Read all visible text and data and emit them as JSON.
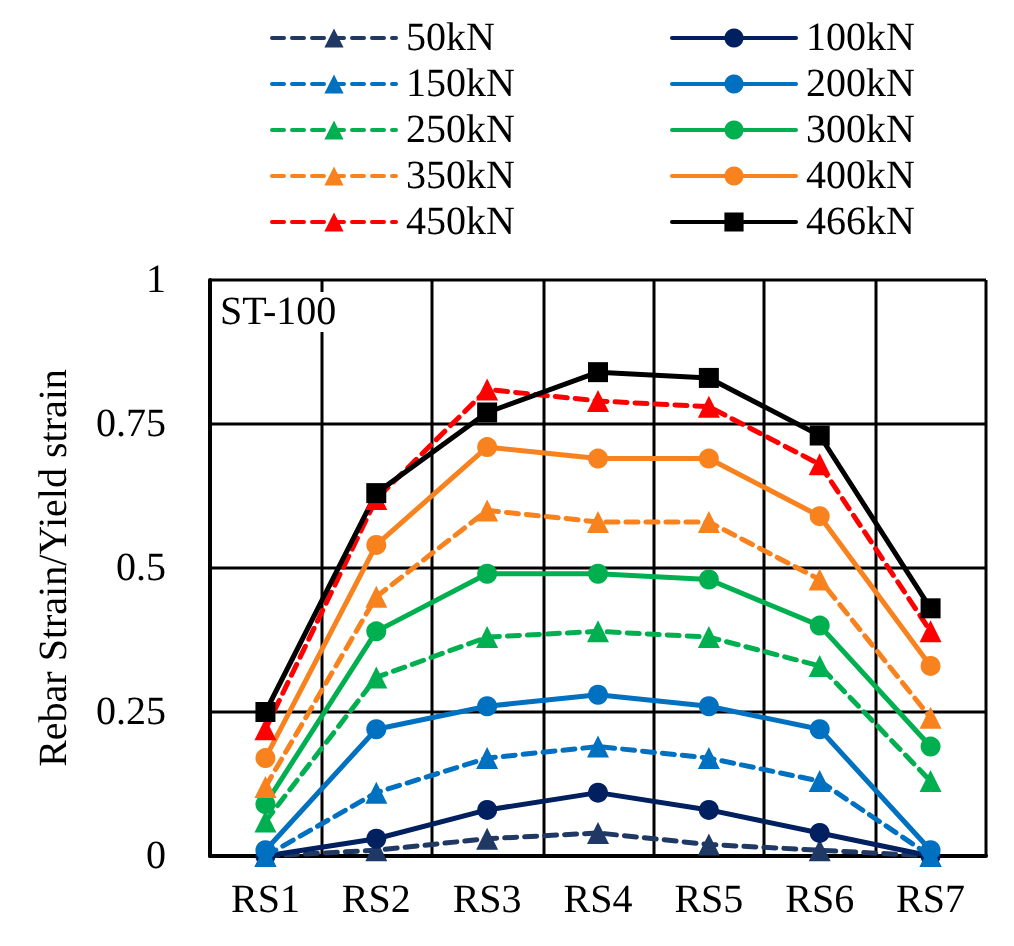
{
  "chart_data": {
    "type": "line",
    "ylabel": "Rebar Strain/Yield strain",
    "annotations": [
      "ST-100"
    ],
    "categories": [
      "RS1",
      "RS2",
      "RS3",
      "RS4",
      "RS5",
      "RS6",
      "RS7"
    ],
    "ylim": [
      0,
      1
    ],
    "yticks": [
      0,
      0.25,
      0.5,
      0.75,
      1
    ],
    "grid": true,
    "legend": "top",
    "series": [
      {
        "name": "50kN",
        "color": "#1f3864",
        "line_style": "dashed",
        "marker": "triangle",
        "values": [
          0,
          0.01,
          0.03,
          0.04,
          0.02,
          0.01,
          0
        ]
      },
      {
        "name": "100kN",
        "color": "#002060",
        "line_style": "solid",
        "marker": "circle",
        "values": [
          0,
          0.03,
          0.08,
          0.11,
          0.08,
          0.04,
          0
        ]
      },
      {
        "name": "150kN",
        "color": "#0070c0",
        "line_style": "dashed",
        "marker": "triangle",
        "values": [
          0,
          0.11,
          0.17,
          0.19,
          0.17,
          0.13,
          0
        ]
      },
      {
        "name": "200kN",
        "color": "#0070c0",
        "line_style": "solid",
        "marker": "circle",
        "values": [
          0.01,
          0.22,
          0.26,
          0.28,
          0.26,
          0.22,
          0.01
        ]
      },
      {
        "name": "250kN",
        "color": "#00b050",
        "line_style": "dashed",
        "marker": "triangle",
        "values": [
          0.06,
          0.31,
          0.38,
          0.39,
          0.38,
          0.33,
          0.13
        ]
      },
      {
        "name": "300kN",
        "color": "#00b050",
        "line_style": "solid",
        "marker": "circle",
        "values": [
          0.09,
          0.39,
          0.49,
          0.49,
          0.48,
          0.4,
          0.19
        ]
      },
      {
        "name": "350kN",
        "color": "#f7821e",
        "line_style": "dashed",
        "marker": "triangle",
        "values": [
          0.12,
          0.45,
          0.6,
          0.58,
          0.58,
          0.48,
          0.24
        ]
      },
      {
        "name": "400kN",
        "color": "#f7821e",
        "line_style": "solid",
        "marker": "circle",
        "values": [
          0.17,
          0.54,
          0.71,
          0.69,
          0.69,
          0.59,
          0.33
        ]
      },
      {
        "name": "450kN",
        "color": "#ff0000",
        "line_style": "dashed",
        "marker": "triangle",
        "values": [
          0.22,
          0.62,
          0.81,
          0.79,
          0.78,
          0.68,
          0.39
        ]
      },
      {
        "name": "466kN",
        "color": "#000000",
        "line_style": "solid",
        "marker": "square",
        "values": [
          0.25,
          0.63,
          0.77,
          0.84,
          0.83,
          0.73,
          0.43
        ]
      }
    ]
  }
}
